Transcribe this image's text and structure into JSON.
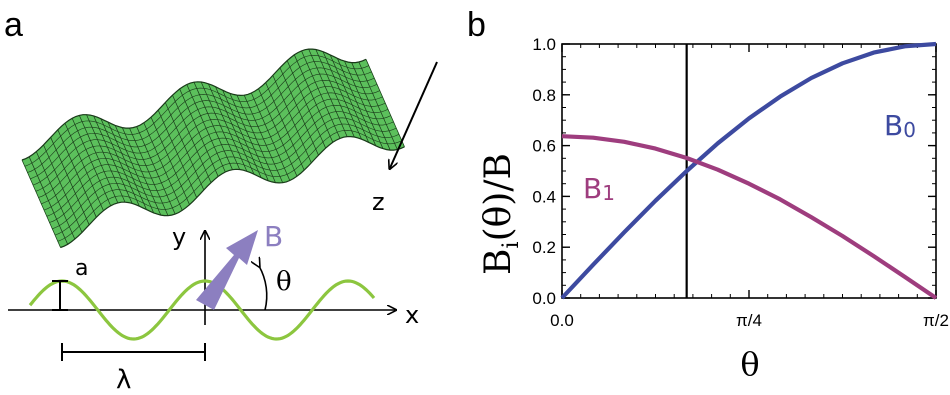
{
  "panel_a": {
    "letter": "a",
    "surface_axis_label": "z",
    "y_label": "y",
    "x_label": "x",
    "field_label": "B",
    "angle_label": "θ",
    "amplitude_label": "a",
    "wavelength_label": "λ",
    "colors": {
      "surface": "#5cc05c",
      "wave": "#8cc63f",
      "arrow": "#8c7fc0"
    }
  },
  "panel_b": {
    "letter": "b",
    "ylabel_main": "B",
    "ylabel_sub": "i",
    "ylabel_rest": "(θ)/B",
    "xlabel": "θ",
    "label_B1": "B",
    "label_B1_sub": "1",
    "label_B0": "B",
    "label_B0_sub": "0"
  },
  "chart_data": {
    "type": "line",
    "x_ticks": [
      "0.0",
      "π/4",
      "π/2"
    ],
    "y_ticks": [
      "0.0",
      "0.2",
      "0.4",
      "0.6",
      "0.8",
      "1.0"
    ],
    "xlim": [
      0,
      1.5708
    ],
    "ylim": [
      0,
      1.0
    ],
    "vline_x": 0.5236,
    "series": [
      {
        "name": "B0",
        "color": "#3d4aa0",
        "x": [
          0,
          0.1309,
          0.2618,
          0.3927,
          0.5236,
          0.6545,
          0.7854,
          0.9163,
          1.0472,
          1.1781,
          1.309,
          1.4399,
          1.5708
        ],
        "y": [
          0,
          0.131,
          0.259,
          0.383,
          0.5,
          0.609,
          0.707,
          0.793,
          0.866,
          0.924,
          0.966,
          0.991,
          1.0
        ]
      },
      {
        "name": "B1",
        "color": "#9e3d7e",
        "x": [
          0,
          0.1309,
          0.2618,
          0.3927,
          0.5236,
          0.6545,
          0.7854,
          0.9163,
          1.0472,
          1.1781,
          1.309,
          1.4399,
          1.5708
        ],
        "y": [
          0.637,
          0.631,
          0.615,
          0.588,
          0.551,
          0.505,
          0.45,
          0.388,
          0.318,
          0.244,
          0.165,
          0.083,
          0
        ]
      }
    ]
  }
}
